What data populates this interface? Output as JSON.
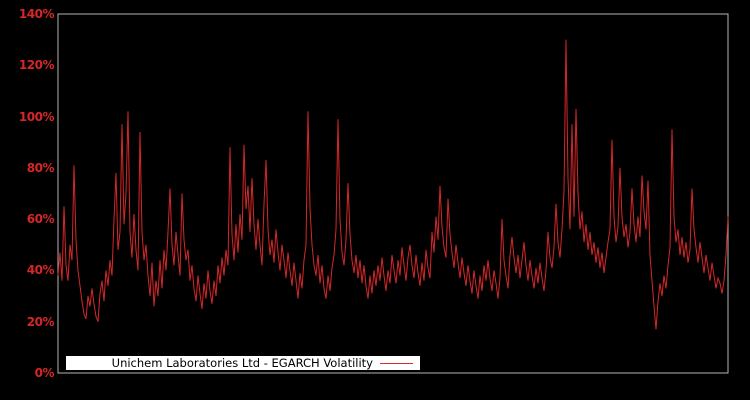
{
  "window": {
    "background": "#000000"
  },
  "legend": {
    "label": "Unichem Laboratories Ltd - EGARCH Volatility"
  },
  "chart_data": {
    "type": "line",
    "title": "",
    "xlabel": "",
    "ylabel": "",
    "legend_entries": [
      "Unichem Laboratories Ltd - EGARCH Volatility"
    ],
    "legend_position": "lower-left-inside",
    "grid": false,
    "plot_bg": "#000000",
    "line_color": "#d62728",
    "tick_label_color": "#d62728",
    "spine_color": "#b3b3b3",
    "legend_bg": "#ffffff",
    "legend_text_color": "#000000",
    "ylim": [
      0,
      140
    ],
    "ytick_values": [
      0,
      20,
      40,
      60,
      80,
      100,
      120,
      140
    ],
    "ytick_labels": [
      "0%",
      "20%",
      "40%",
      "60%",
      "80%",
      "100%",
      "120%",
      "140%"
    ],
    "x_axis_labels_visible": false,
    "unit": "percent",
    "series": [
      {
        "name": "Unichem Laboratories Ltd - EGARCH Volatility",
        "values": [
          38,
          47,
          36,
          65,
          42,
          36,
          50,
          44,
          81,
          52,
          40,
          34,
          28,
          23,
          21,
          30,
          26,
          33,
          27,
          22,
          20,
          31,
          36,
          28,
          40,
          34,
          44,
          38,
          60,
          78,
          48,
          55,
          97,
          58,
          70,
          102,
          55,
          45,
          62,
          48,
          40,
          94,
          55,
          44,
          50,
          38,
          30,
          43,
          26,
          36,
          30,
          44,
          33,
          48,
          40,
          55,
          72,
          50,
          42,
          55,
          46,
          38,
          70,
          52,
          44,
          48,
          36,
          42,
          33,
          28,
          38,
          31,
          25,
          35,
          29,
          40,
          32,
          27,
          36,
          30,
          42,
          35,
          45,
          38,
          48,
          42,
          88,
          54,
          44,
          58,
          47,
          62,
          52,
          89,
          64,
          73,
          55,
          76,
          58,
          48,
          60,
          50,
          42,
          66,
          83,
          56,
          46,
          52,
          43,
          56,
          47,
          40,
          50,
          44,
          37,
          47,
          40,
          34,
          43,
          36,
          29,
          39,
          33,
          44,
          50,
          102,
          64,
          50,
          42,
          38,
          46,
          35,
          42,
          33,
          29,
          38,
          32,
          41,
          46,
          56,
          99,
          60,
          47,
          42,
          52,
          74,
          54,
          44,
          39,
          46,
          37,
          44,
          35,
          42,
          34,
          29,
          38,
          31,
          40,
          34,
          42,
          36,
          45,
          38,
          32,
          40,
          35,
          46,
          40,
          35,
          44,
          38,
          49,
          42,
          36,
          45,
          50,
          42,
          37,
          46,
          39,
          34,
          43,
          36,
          48,
          41,
          37,
          55,
          47,
          61,
          52,
          73,
          57,
          49,
          45,
          68,
          54,
          47,
          41,
          50,
          43,
          37,
          45,
          39,
          34,
          42,
          36,
          31,
          40,
          34,
          29,
          38,
          32,
          42,
          36,
          44,
          37,
          32,
          40,
          35,
          29,
          37,
          60,
          44,
          38,
          33,
          46,
          53,
          45,
          39,
          46,
          37,
          44,
          51,
          42,
          36,
          44,
          38,
          33,
          41,
          35,
          43,
          37,
          32,
          40,
          55,
          45,
          41,
          49,
          66,
          51,
          45,
          56,
          71,
          130,
          76,
          56,
          97,
          61,
          103,
          70,
          56,
          63,
          51,
          58,
          48,
          55,
          46,
          51,
          43,
          49,
          41,
          47,
          39,
          45,
          51,
          56,
          91,
          61,
          51,
          57,
          80,
          61,
          53,
          58,
          49,
          55,
          72,
          58,
          51,
          61,
          53,
          77,
          63,
          56,
          75,
          46,
          36,
          26,
          17,
          28,
          35,
          30,
          38,
          33,
          42,
          49,
          95,
          61,
          51,
          56,
          46,
          53,
          45,
          51,
          43,
          48,
          72,
          56,
          49,
          43,
          51,
          45,
          39,
          46,
          41,
          36,
          43,
          38,
          33,
          37,
          35,
          31,
          36,
          46,
          61
        ]
      }
    ]
  }
}
